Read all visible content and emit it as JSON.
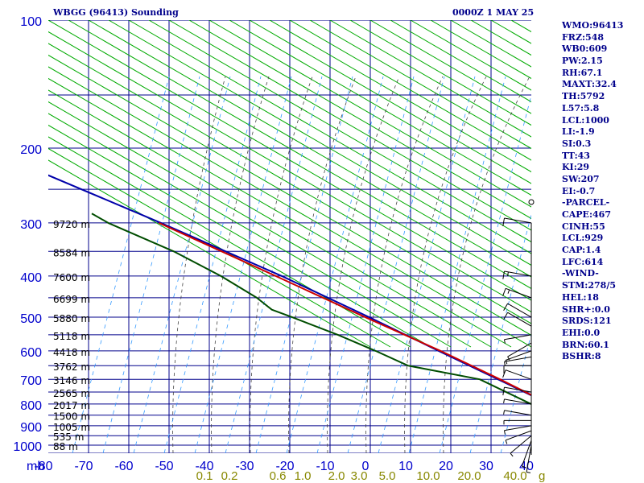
{
  "header": {
    "station_title": "WBGG (96413) Sounding",
    "time_title": "0000Z  1 MAY 25"
  },
  "indices": [
    "WMO:96413",
    "FRZ:548",
    "WB0:609",
    "PW:2.15",
    "RH:67.1",
    "MAXT:32.4",
    "TH:5792",
    "L57:5.8",
    "LCL:1000",
    "LI:-1.9",
    "SI:0.3",
    "TT:43",
    "KI:29",
    "SW:207",
    "EI:-0.7",
    "-PARCEL-",
    "CAPE:467",
    "CINH:55",
    "LCL:929",
    "CAP:1.4",
    "LFC:614",
    "-WIND-",
    "STM:278/5",
    "HEL:18",
    "SHR+:0.0",
    "SRDS:121",
    "EHI:0.0",
    "BRN:60.1",
    "BSHR:8"
  ],
  "colors": {
    "axis": "#00008b",
    "label": "#0000cc",
    "isotherm_grid": "#00008b",
    "dry_adiabat": "#00aa00",
    "mixing_ratio_text": "#888800",
    "temperature": "#cc0000",
    "dewpoint": "#004d00",
    "parcel": "#0000aa"
  },
  "chart_data": {
    "type": "skew-t",
    "xlabel": "",
    "ylabel": "mb",
    "pressure_ticks": [
      {
        "p": 100,
        "label": "100"
      },
      {
        "p": 200,
        "label": "200"
      },
      {
        "p": 300,
        "label": "300"
      },
      {
        "p": 400,
        "label": "400"
      },
      {
        "p": 500,
        "label": "500"
      },
      {
        "p": 600,
        "label": "600"
      },
      {
        "p": 700,
        "label": "700"
      },
      {
        "p": 800,
        "label": "800"
      },
      {
        "p": 900,
        "label": "900"
      },
      {
        "p": 1000,
        "label": "1000"
      }
    ],
    "extra_isobars": [
      150,
      250,
      350,
      450,
      550,
      650,
      750,
      850,
      950
    ],
    "temperature_ticks": [
      {
        "t": -80,
        "label": "-80"
      },
      {
        "t": -70,
        "label": "-70"
      },
      {
        "t": -60,
        "label": "-60"
      },
      {
        "t": -50,
        "label": "-50"
      },
      {
        "t": -40,
        "label": "-40"
      },
      {
        "t": -30,
        "label": "-30"
      },
      {
        "t": -20,
        "label": "-20"
      },
      {
        "t": -10,
        "label": "-10"
      },
      {
        "t": 0,
        "label": "0"
      },
      {
        "t": 10,
        "label": "10"
      },
      {
        "t": 20,
        "label": "20"
      },
      {
        "t": 30,
        "label": "30"
      },
      {
        "t": 40,
        "label": "40"
      }
    ],
    "mixing_ratio_labels": [
      {
        "w": 0.1,
        "label": "0.1"
      },
      {
        "w": 0.2,
        "label": "0.2"
      },
      {
        "w": 0.6,
        "label": "0.6"
      },
      {
        "w": 1.0,
        "label": "1.0"
      },
      {
        "w": 2.0,
        "label": "2.0"
      },
      {
        "w": 3.0,
        "label": "3.0"
      },
      {
        "w": 5.0,
        "label": "5.0"
      },
      {
        "w": 10.0,
        "label": "10.0"
      },
      {
        "w": 20.0,
        "label": "20.0"
      },
      {
        "w": 40.0,
        "label": "40.0"
      }
    ],
    "mixing_ratio_unit": "g",
    "heights": [
      {
        "p": 300,
        "label": "9720 m"
      },
      {
        "p": 350,
        "label": "8584 m"
      },
      {
        "p": 400,
        "label": "7600 m"
      },
      {
        "p": 450,
        "label": "6699 m"
      },
      {
        "p": 500,
        "label": "5880 m"
      },
      {
        "p": 550,
        "label": "5118 m"
      },
      {
        "p": 600,
        "label": "4418 m"
      },
      {
        "p": 650,
        "label": "3762 m"
      },
      {
        "p": 700,
        "label": "3146 m"
      },
      {
        "p": 750,
        "label": "2565 m"
      },
      {
        "p": 800,
        "label": "2017 m"
      },
      {
        "p": 850,
        "label": "1500 m"
      },
      {
        "p": 900,
        "label": "1005 m"
      },
      {
        "p": 950,
        "label": "535 m"
      },
      {
        "p": 1000,
        "label": "88 m"
      }
    ],
    "temperature_profile": [
      {
        "p": 1000,
        "t": 25.0
      },
      {
        "p": 975,
        "t": 24.5
      },
      {
        "p": 950,
        "t": 22.0
      },
      {
        "p": 925,
        "t": 20.5
      },
      {
        "p": 900,
        "t": 19.5
      },
      {
        "p": 850,
        "t": 17.0
      },
      {
        "p": 800,
        "t": 15.5
      },
      {
        "p": 700,
        "t": 10.0
      },
      {
        "p": 600,
        "t": 3.0
      },
      {
        "p": 500,
        "t": -6.5
      },
      {
        "p": 400,
        "t": -17.5
      },
      {
        "p": 300,
        "t": -32.0
      }
    ],
    "dewpoint_profile": [
      {
        "p": 1000,
        "t": 23.5
      },
      {
        "p": 975,
        "t": 20.0
      },
      {
        "p": 950,
        "t": 19.0
      },
      {
        "p": 925,
        "t": 18.0
      },
      {
        "p": 900,
        "t": 16.5
      },
      {
        "p": 850,
        "t": 13.0
      },
      {
        "p": 800,
        "t": 11.0
      },
      {
        "p": 700,
        "t": 5.0
      },
      {
        "p": 650,
        "t": -9.0
      },
      {
        "p": 600,
        "t": -13.0
      },
      {
        "p": 550,
        "t": -18.0
      },
      {
        "p": 500,
        "t": -24.5
      },
      {
        "p": 480,
        "t": -27.5
      },
      {
        "p": 450,
        "t": -28.0
      },
      {
        "p": 400,
        "t": -31.0
      },
      {
        "p": 350,
        "t": -36.0
      },
      {
        "p": 300,
        "t": -44.5
      },
      {
        "p": 285,
        "t": -46.0
      }
    ],
    "parcel_profile": [
      {
        "p": 1000,
        "t": 28.0
      },
      {
        "p": 950,
        "t": 24.5
      },
      {
        "p": 929,
        "t": 23.0
      },
      {
        "p": 900,
        "t": 21.5
      },
      {
        "p": 850,
        "t": 18.5
      },
      {
        "p": 800,
        "t": 15.5
      },
      {
        "p": 700,
        "t": 9.5
      },
      {
        "p": 600,
        "t": 2.5
      },
      {
        "p": 500,
        "t": -5.5
      },
      {
        "p": 400,
        "t": -16.0
      },
      {
        "p": 300,
        "t": -31.5
      },
      {
        "p": 200,
        "t": -55.0
      },
      {
        "p": 150,
        "t": -70.0
      },
      {
        "p": 100,
        "t": -92.0
      }
    ],
    "winds": [
      {
        "p": 1000,
        "dir": 190,
        "spd": 5
      },
      {
        "p": 975,
        "dir": 200,
        "spd": 5
      },
      {
        "p": 950,
        "dir": 230,
        "spd": 5
      },
      {
        "p": 925,
        "dir": 250,
        "spd": 5
      },
      {
        "p": 900,
        "dir": 260,
        "spd": 5
      },
      {
        "p": 875,
        "dir": 270,
        "spd": 5
      },
      {
        "p": 850,
        "dir": 280,
        "spd": 5
      },
      {
        "p": 800,
        "dir": 280,
        "spd": 5
      },
      {
        "p": 750,
        "dir": 280,
        "spd": 10
      },
      {
        "p": 700,
        "dir": 290,
        "spd": 10
      },
      {
        "p": 650,
        "dir": 270,
        "spd": 10
      },
      {
        "p": 620,
        "dir": 260,
        "spd": 5
      },
      {
        "p": 600,
        "dir": 250,
        "spd": 5
      },
      {
        "p": 575,
        "dir": 240,
        "spd": 5
      },
      {
        "p": 550,
        "dir": 260,
        "spd": 5
      },
      {
        "p": 525,
        "dir": 300,
        "spd": 10
      },
      {
        "p": 500,
        "dir": 300,
        "spd": 10
      },
      {
        "p": 450,
        "dir": 290,
        "spd": 15
      },
      {
        "p": 400,
        "dir": 280,
        "spd": 15
      },
      {
        "p": 300,
        "dir": 280,
        "spd": 10
      }
    ]
  }
}
